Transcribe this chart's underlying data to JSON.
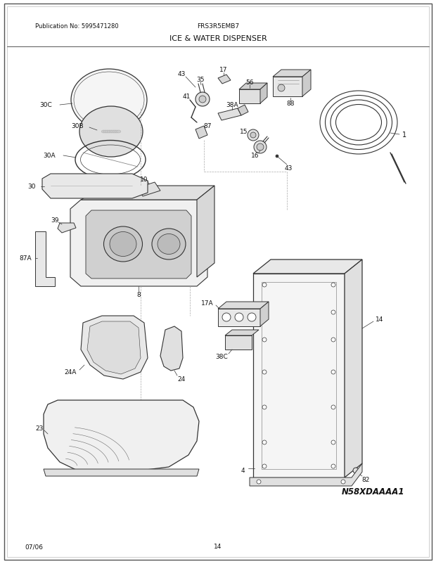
{
  "title": "ICE & WATER DISPENSER",
  "pub_no": "Publication No: 5995471280",
  "model": "FRS3R5EMB7",
  "footer_left": "07/06",
  "footer_center": "14",
  "diagram_id": "N58XDAAAA1",
  "bg_color": "#ffffff",
  "lc": "#333333"
}
